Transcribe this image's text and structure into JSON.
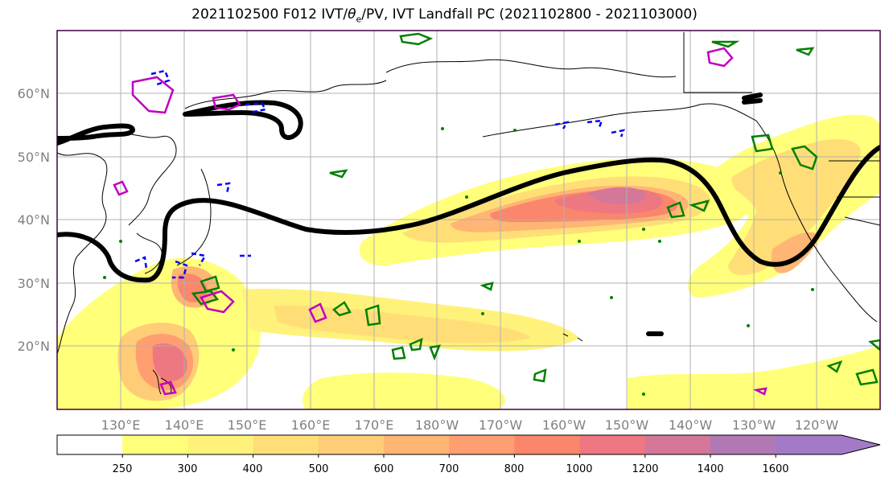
{
  "title": {
    "main": "2021102500 F012 IVT/",
    "theta": "θ",
    "theta_sub": "e",
    "rest": "/PV, IVT Landfall PC (2021102800 - 2021103000)"
  },
  "map": {
    "lon_ticks": [
      "130°E",
      "140°E",
      "150°E",
      "160°E",
      "170°E",
      "180°W",
      "170°W",
      "160°W",
      "150°W",
      "140°W",
      "130°W",
      "120°W"
    ],
    "lat_ticks": [
      "60°N",
      "50°N",
      "40°N",
      "30°N",
      "20°N"
    ],
    "contour_colors": {
      "theta_e": "#000000",
      "pv_positive": "#008000",
      "pv_negative": "#0000ff",
      "pv_high": "#c000c0"
    },
    "gridlines": true
  },
  "colorbar": {
    "ticks": [
      "250",
      "300",
      "400",
      "500",
      "600",
      "700",
      "800",
      "1000",
      "1200",
      "1400",
      "1600"
    ],
    "colors": [
      "#ffffff",
      "#ffff7a",
      "#fff27a",
      "#ffde78",
      "#ffcc77",
      "#ffb574",
      "#ff9e70",
      "#fa866c",
      "#ee7882",
      "#d47799",
      "#b079b4",
      "#a47ac8"
    ]
  }
}
